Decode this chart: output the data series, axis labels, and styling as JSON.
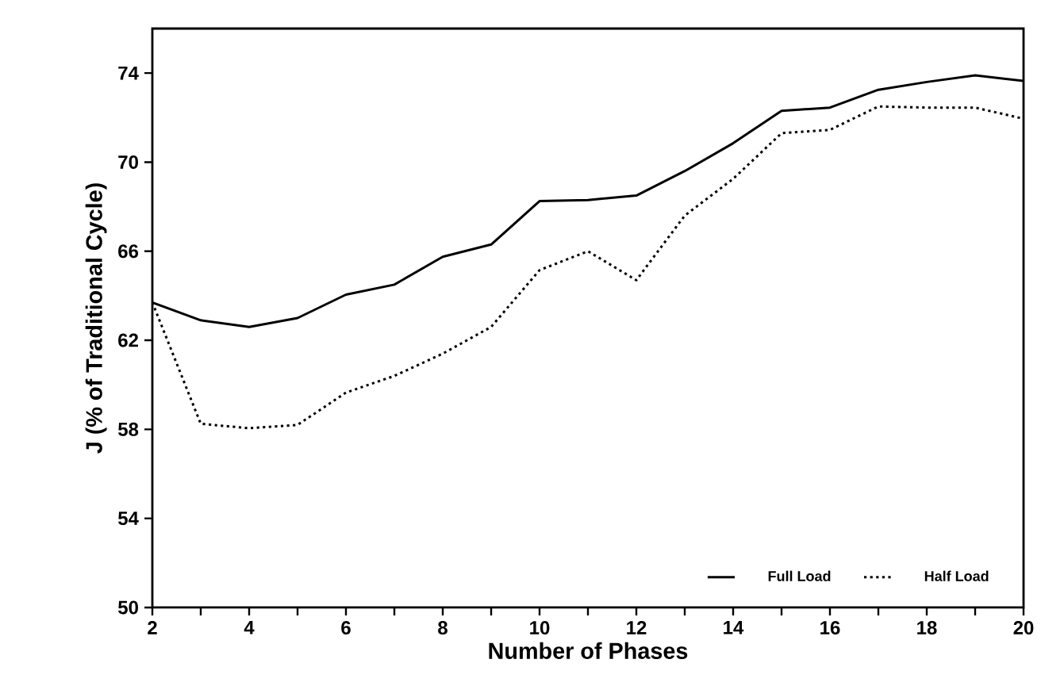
{
  "chart_data": {
    "type": "line",
    "xlabel": "Number of Phases",
    "ylabel": "J (% of Traditional Cycle)",
    "x": [
      2,
      3,
      4,
      5,
      6,
      7,
      8,
      9,
      10,
      11,
      12,
      13,
      14,
      15,
      16,
      17,
      18,
      19,
      20
    ],
    "series": [
      {
        "name": "Full Load",
        "color": "#000000",
        "line_style": "solid",
        "values": [
          63.7,
          62.9,
          62.6,
          63.0,
          64.05,
          64.5,
          65.75,
          66.3,
          68.25,
          68.3,
          68.5,
          69.6,
          70.85,
          72.3,
          72.45,
          73.25,
          73.6,
          73.9,
          73.65
        ]
      },
      {
        "name": "Half Load",
        "color": "#000000",
        "line_style": "dotted",
        "values": [
          63.7,
          58.25,
          58.05,
          58.2,
          59.65,
          60.4,
          61.4,
          62.6,
          65.15,
          66.0,
          64.7,
          67.6,
          69.25,
          71.3,
          71.45,
          72.5,
          72.45,
          72.45,
          71.95
        ]
      }
    ],
    "xlim": [
      2,
      20
    ],
    "ylim": [
      50,
      76
    ],
    "xticks": [
      2,
      {
        "value": 3,
        "label": null
      },
      4,
      {
        "value": 5,
        "label": null
      },
      6,
      {
        "value": 7,
        "label": null
      },
      8,
      {
        "value": 9,
        "label": null
      },
      10,
      {
        "value": 11,
        "label": null
      },
      12,
      {
        "value": 13,
        "label": null
      },
      14,
      {
        "value": 15,
        "label": null
      },
      16,
      {
        "value": 17,
        "label": null
      },
      18,
      {
        "value": 19,
        "label": null
      },
      20
    ],
    "yticks": [
      50,
      54,
      58,
      62,
      66,
      70,
      74
    ],
    "grid": false,
    "legend": "bottom right",
    "marker": "none"
  }
}
